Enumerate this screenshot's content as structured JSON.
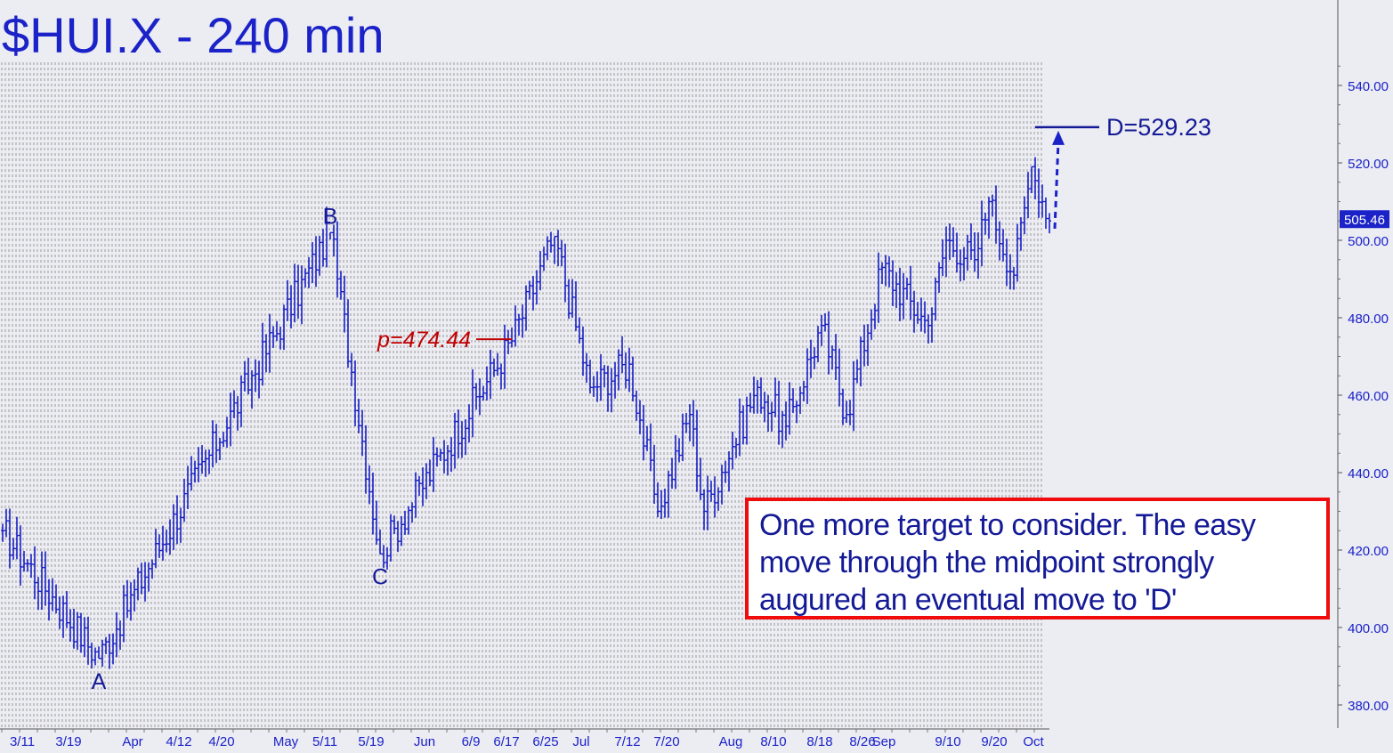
{
  "chart_data": {
    "type": "ohlc-bar",
    "title": "$HUI.X - 240 min",
    "ylim": [
      375,
      549
    ],
    "y_ticks": [
      380,
      400,
      420,
      440,
      460,
      480,
      500,
      520,
      540
    ],
    "y_tick_labels": [
      "380.00",
      "400.00",
      "420.00",
      "440.00",
      "460.00",
      "480.00",
      "500.00",
      "520.00",
      "540.00"
    ],
    "x_tick_labels": [
      "3/11",
      "3/19",
      "Apr",
      "4/12",
      "4/20",
      "May",
      "5/11",
      "5/19",
      "Jun",
      "6/9",
      "6/17",
      "6/25",
      "Jul",
      "7/12",
      "7/20",
      "Aug",
      "8/10",
      "8/18",
      "8/26",
      "Sep",
      "9/10",
      "9/20",
      "Oct"
    ],
    "last_price": "505.46",
    "anchors": [
      {
        "bar": 0,
        "price": 425
      },
      {
        "bar": 27,
        "price": 392
      },
      {
        "bar": 92,
        "price": 502
      },
      {
        "bar": 106,
        "price": 419
      },
      {
        "bar": 143,
        "price": 474
      },
      {
        "bar": 155,
        "price": 501
      },
      {
        "bar": 165,
        "price": 462
      },
      {
        "bar": 176,
        "price": 468
      },
      {
        "bar": 184,
        "price": 430
      },
      {
        "bar": 193,
        "price": 455
      },
      {
        "bar": 197,
        "price": 430
      },
      {
        "bar": 212,
        "price": 462
      },
      {
        "bar": 220,
        "price": 452
      },
      {
        "bar": 230,
        "price": 478
      },
      {
        "bar": 237,
        "price": 455
      },
      {
        "bar": 247,
        "price": 493
      },
      {
        "bar": 260,
        "price": 478
      },
      {
        "bar": 265,
        "price": 500
      },
      {
        "bar": 273,
        "price": 495
      },
      {
        "bar": 277,
        "price": 510
      },
      {
        "bar": 284,
        "price": 491
      },
      {
        "bar": 289,
        "price": 519
      },
      {
        "bar": 294,
        "price": 505
      }
    ],
    "pattern_labels": [
      {
        "label": "A",
        "bar": 27,
        "price": 392,
        "position": "below"
      },
      {
        "label": "B",
        "bar": 92,
        "price": 502,
        "position": "above"
      },
      {
        "label": "C",
        "bar": 106,
        "price": 419,
        "position": "below"
      }
    ],
    "levels": [
      {
        "label": "p=474.44",
        "price": 474.44,
        "color": "#c00000"
      },
      {
        "label": "D=529.23",
        "price": 529.23,
        "color": "#141a96"
      }
    ],
    "projection": {
      "from_price": 503,
      "to_price": 529.23,
      "style": "dashed-arrow"
    }
  },
  "annotation": {
    "lines": [
      "One more target to consider. The easy",
      "move through the midpoint strongly",
      "augured an eventual move to 'D'"
    ]
  },
  "colors": {
    "bars": "#1a22c8",
    "background": "#ececf3",
    "grid": "#9a9a9a",
    "pivot": "#c00000",
    "target": "#141a96",
    "note_border": "#f00c0c"
  }
}
